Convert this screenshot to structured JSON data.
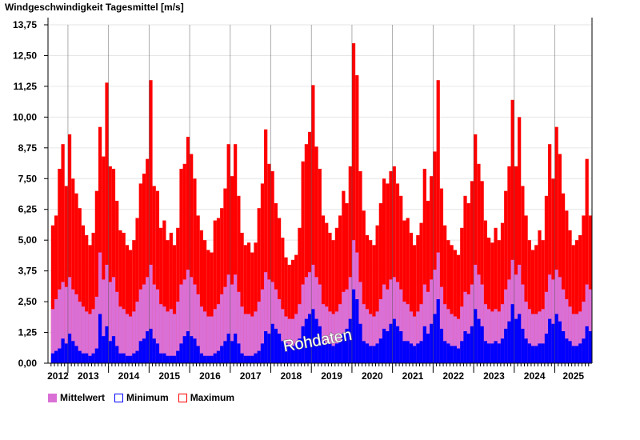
{
  "chart_data": {
    "type": "bar",
    "title": "Windgeschwindigkeit Tagesmittel [m/s]",
    "xlabel": "",
    "ylabel": "",
    "ylim": [
      0,
      13.75
    ],
    "yticks": [
      "0,00",
      "1,25",
      "2,50",
      "3,75",
      "5,00",
      "6,25",
      "7,50",
      "8,75",
      "10,00",
      "11,25",
      "12,50",
      "13,75"
    ],
    "ytick_values": [
      0,
      1.25,
      2.5,
      3.75,
      5,
      6.25,
      7.5,
      8.75,
      10,
      11.25,
      12.5,
      13.75
    ],
    "x_range": [
      "2012-07",
      "2025-12"
    ],
    "xtick_labels": [
      "2012",
      "2013",
      "2014",
      "2015",
      "2016",
      "2017",
      "2018",
      "2019",
      "2020",
      "2021",
      "2022",
      "2023",
      "2024",
      "2025"
    ],
    "first_month": "2012-08",
    "resolution": "monthly (approximate, read from daily chart)",
    "grid": true,
    "legend_position": "bottom-left",
    "annotation": "Rohdaten",
    "series": [
      {
        "name": "Maximum",
        "color": "#ff0000",
        "values": [
          5.6,
          6.0,
          7.9,
          8.9,
          7.2,
          9.3,
          7.5,
          6.9,
          6.3,
          5.6,
          5.2,
          4.8,
          5.3,
          7.0,
          9.6,
          8.4,
          11.4,
          8.0,
          7.9,
          6.6,
          5.4,
          5.3,
          4.8,
          4.6,
          5.0,
          5.9,
          7.3,
          7.7,
          8.3,
          11.5,
          7.2,
          7.0,
          5.5,
          5.8,
          5.0,
          5.3,
          4.8,
          5.5,
          7.9,
          8.1,
          9.2,
          8.5,
          7.5,
          6.0,
          5.4,
          5.0,
          4.6,
          4.5,
          5.8,
          5.9,
          6.3,
          7.1,
          8.9,
          7.6,
          8.9,
          6.8,
          5.3,
          4.8,
          4.9,
          4.5,
          4.9,
          6.3,
          7.3,
          9.5,
          8.1,
          7.8,
          6.5,
          5.9,
          5.1,
          4.3,
          4.0,
          4.2,
          4.4,
          5.5,
          8.2,
          8.9,
          9.4,
          11.3,
          8.8,
          7.9,
          6.0,
          5.7,
          5.3,
          5.0,
          5.5,
          6.0,
          7.0,
          6.5,
          8.0,
          13.0,
          11.7,
          7.8,
          6.2,
          5.2,
          5.0,
          4.8,
          5.6,
          6.5,
          7.5,
          7.3,
          7.8,
          8.0,
          7.3,
          6.8,
          5.8,
          5.9,
          5.3,
          4.8,
          5.2,
          5.7,
          7.9,
          6.6,
          7.6,
          8.6,
          11.5,
          7.1,
          5.6,
          5.0,
          4.8,
          4.6,
          4.4,
          5.5,
          6.8,
          6.5,
          7.4,
          9.3,
          8.1,
          7.4,
          5.8,
          5.1,
          4.9,
          5.5,
          5.0,
          5.7,
          7.0,
          8.0,
          10.7,
          8.0,
          10.0,
          7.2,
          6.0,
          5.0,
          4.6,
          4.8,
          5.4,
          5.0,
          6.8,
          8.9,
          7.5,
          9.6,
          8.5,
          6.9,
          6.2,
          5.4,
          4.8,
          5.0,
          5.2,
          6.0,
          8.3,
          6.0
        ]
      },
      {
        "name": "Mittelwert",
        "color": "#da70d6",
        "values": [
          2.2,
          2.6,
          3.0,
          3.3,
          3.1,
          3.5,
          3.0,
          2.8,
          2.5,
          2.3,
          2.1,
          2.0,
          2.2,
          2.7,
          4.5,
          3.4,
          4.0,
          3.3,
          3.5,
          2.9,
          2.3,
          2.2,
          2.0,
          1.9,
          2.1,
          2.5,
          3.0,
          3.2,
          3.5,
          4.0,
          3.2,
          3.0,
          2.4,
          2.3,
          2.1,
          2.2,
          2.0,
          2.5,
          3.2,
          3.4,
          3.8,
          3.5,
          3.2,
          2.8,
          2.3,
          2.1,
          1.9,
          1.9,
          2.2,
          2.4,
          2.8,
          3.1,
          3.6,
          3.2,
          3.6,
          2.9,
          2.3,
          2.0,
          2.0,
          1.9,
          2.1,
          2.5,
          3.0,
          3.7,
          3.4,
          3.3,
          3.0,
          2.6,
          2.2,
          1.9,
          1.8,
          1.8,
          2.0,
          2.4,
          3.2,
          3.5,
          3.7,
          4.0,
          3.5,
          3.2,
          2.4,
          2.3,
          2.1,
          2.0,
          2.1,
          2.4,
          2.9,
          3.0,
          3.5,
          5.0,
          4.5,
          3.3,
          2.4,
          2.2,
          2.0,
          1.9,
          2.1,
          2.6,
          3.2,
          3.0,
          3.4,
          3.5,
          3.3,
          3.0,
          2.5,
          2.4,
          2.1,
          1.9,
          2.1,
          2.4,
          3.2,
          2.9,
          3.4,
          3.8,
          4.5,
          3.1,
          2.4,
          2.2,
          2.0,
          1.9,
          1.8,
          2.3,
          2.9,
          2.8,
          3.2,
          4.0,
          3.6,
          3.2,
          2.4,
          2.2,
          2.1,
          2.2,
          2.1,
          2.4,
          3.0,
          3.4,
          4.2,
          3.6,
          4.0,
          3.2,
          2.5,
          2.2,
          2.0,
          2.0,
          2.1,
          2.2,
          2.9,
          3.6,
          3.4,
          3.8,
          3.5,
          3.0,
          2.6,
          2.3,
          2.0,
          2.0,
          2.1,
          2.5,
          3.2,
          3.0
        ]
      },
      {
        "name": "Minimum",
        "color": "#0000ff",
        "values": [
          0.4,
          0.5,
          0.6,
          1.0,
          0.8,
          1.2,
          0.9,
          0.7,
          0.5,
          0.4,
          0.4,
          0.3,
          0.4,
          0.6,
          2.0,
          1.1,
          1.5,
          0.9,
          1.1,
          0.7,
          0.4,
          0.4,
          0.3,
          0.3,
          0.4,
          0.5,
          0.9,
          1.0,
          1.3,
          1.4,
          1.0,
          0.8,
          0.4,
          0.4,
          0.3,
          0.3,
          0.3,
          0.5,
          0.8,
          1.1,
          1.3,
          1.1,
          1.0,
          0.7,
          0.4,
          0.3,
          0.3,
          0.3,
          0.4,
          0.5,
          0.7,
          0.9,
          1.2,
          0.9,
          1.2,
          0.8,
          0.4,
          0.3,
          0.3,
          0.3,
          0.4,
          0.5,
          0.8,
          1.3,
          1.2,
          1.6,
          1.4,
          1.2,
          0.9,
          0.8,
          0.7,
          0.7,
          0.8,
          1.0,
          1.5,
          1.8,
          2.0,
          2.2,
          1.8,
          1.5,
          0.9,
          0.8,
          0.8,
          0.7,
          0.8,
          0.9,
          1.2,
          1.4,
          1.8,
          3.0,
          2.6,
          1.6,
          0.9,
          0.8,
          0.7,
          0.7,
          0.8,
          1.0,
          1.4,
          1.3,
          1.6,
          1.8,
          1.5,
          1.3,
          0.9,
          0.9,
          0.8,
          0.7,
          0.8,
          0.9,
          1.5,
          1.2,
          1.6,
          2.0,
          2.6,
          1.4,
          0.9,
          0.8,
          0.7,
          0.7,
          0.6,
          0.9,
          1.3,
          1.2,
          1.5,
          2.2,
          1.8,
          1.5,
          0.9,
          0.8,
          0.8,
          0.9,
          0.8,
          1.0,
          1.4,
          1.7,
          2.4,
          1.8,
          2.0,
          1.4,
          1.0,
          0.8,
          0.7,
          0.7,
          0.8,
          0.8,
          1.2,
          1.8,
          1.6,
          2.0,
          1.7,
          1.3,
          1.0,
          0.9,
          0.7,
          0.7,
          0.8,
          1.0,
          1.5,
          1.3
        ]
      }
    ]
  },
  "legend": {
    "items": [
      {
        "label": "Mittelwert",
        "color": "#da70d6",
        "style": "filled"
      },
      {
        "label": "Minimum",
        "color": "#0000ff",
        "style": "outline"
      },
      {
        "label": "Maximum",
        "color": "#ff0000",
        "style": "outline"
      }
    ]
  }
}
